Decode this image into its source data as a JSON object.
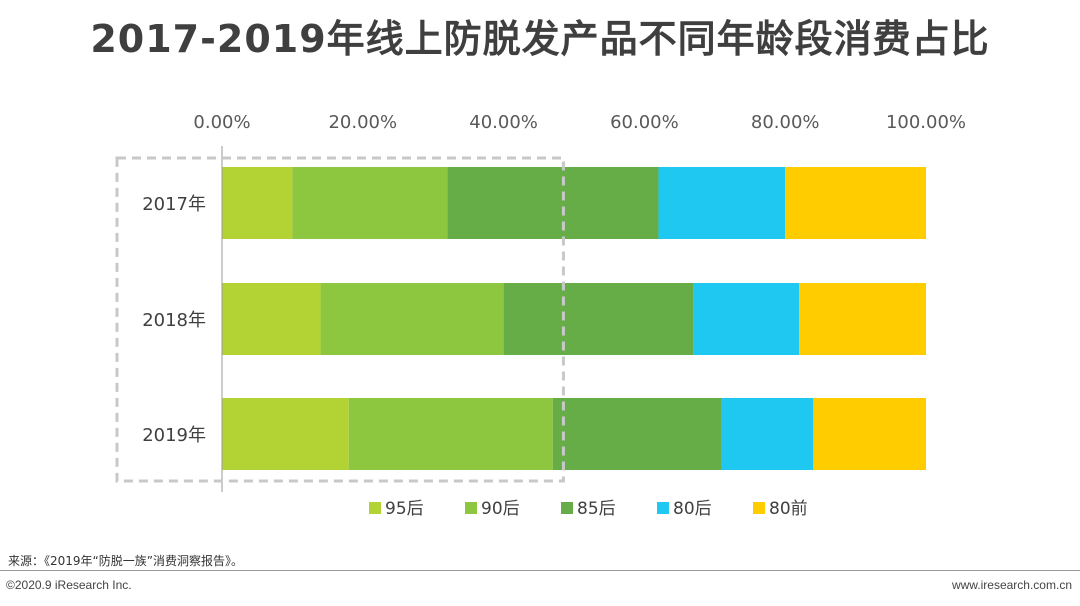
{
  "title": "2017-2019年线上防脱发产品不同年龄段消费占比",
  "chart_data": {
    "type": "bar",
    "orientation": "horizontal",
    "stacked": true,
    "xlim": [
      0,
      100
    ],
    "tick_values": [
      0,
      20,
      40,
      60,
      80,
      100
    ],
    "tick_labels": [
      "0.00%",
      "20.00%",
      "40.00%",
      "60.00%",
      "80.00%",
      "100.00%"
    ],
    "categories": [
      "2017年",
      "2018年",
      "2019年"
    ],
    "series": [
      {
        "name": "95后",
        "color": "#b3d335",
        "values": [
          10,
          14,
          18
        ]
      },
      {
        "name": "90后",
        "color": "#8dc63f",
        "values": [
          22,
          26,
          29
        ]
      },
      {
        "name": "85后",
        "color": "#66ad47",
        "values": [
          30,
          27,
          24
        ]
      },
      {
        "name": "80后",
        "color": "#1fc8f0",
        "values": [
          18,
          15,
          13
        ]
      },
      {
        "name": "80前",
        "color": "#ffcc00",
        "values": [
          20,
          18,
          16
        ]
      }
    ],
    "highlight_range": [
      0,
      48.5
    ]
  },
  "source": "来源：《2019年“防脱一族”消费洞察报告》。",
  "copyright": "©2020.9 iResearch Inc.",
  "website": "www.iresearch.com.cn"
}
